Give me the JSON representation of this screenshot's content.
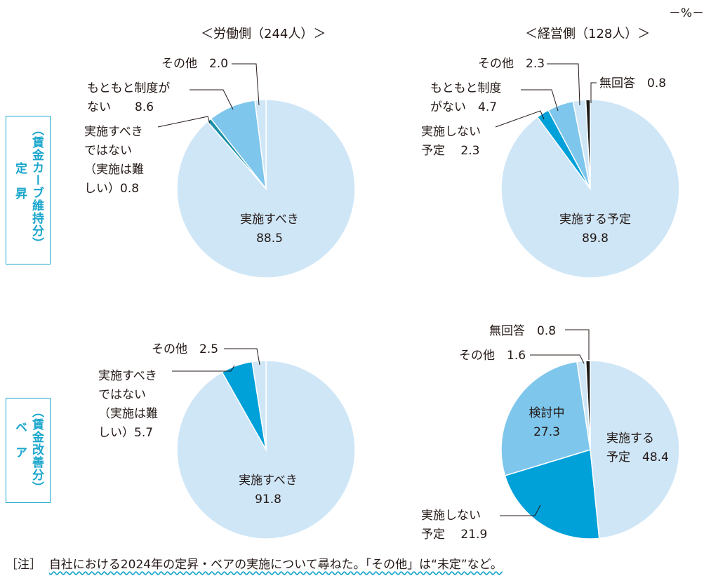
{
  "unit": "－%－",
  "columns": [
    "＜労働側（244人）＞",
    "＜経営側（128人）＞"
  ],
  "rows": [
    {
      "title": "定　昇",
      "sub": "（賃金カーブ維持分）"
    },
    {
      "title": "ベ　ア",
      "sub": "（賃金改善分）"
    }
  ],
  "note": {
    "prefix": "［注］",
    "text": "自社における2024年の定昇・ベアの実施について尋ねた。「その他」は“未定”など。"
  },
  "colors": {
    "light": "#cfe6f7",
    "mid": "#7ec6ec",
    "blue": "#00a0d9",
    "teal": "#1b8ea6",
    "black": "#1a1a1a",
    "accent": "#1aa6cc"
  },
  "chart_data": [
    {
      "type": "pie",
      "title": "定昇・労働側",
      "slices": [
        {
          "label": [
            "実施すべき"
          ],
          "value": 88.5,
          "color": "light"
        },
        {
          "label": [
            "実施すべき",
            "ではない",
            "（実施は難",
            "しい）0.8"
          ],
          "value": 0.8,
          "color": "teal"
        },
        {
          "label": [
            "もともと制度が",
            "ない　　8.6"
          ],
          "value": 8.6,
          "color": "mid"
        },
        {
          "label": [
            "その他　2.0"
          ],
          "value": 2.0,
          "color": "light"
        }
      ]
    },
    {
      "type": "pie",
      "title": "定昇・経営側",
      "slices": [
        {
          "label": [
            "実施する予定"
          ],
          "value": 89.8,
          "color": "light"
        },
        {
          "label": [
            "実施しない",
            "予定　  2.3"
          ],
          "value": 2.3,
          "color": "blue"
        },
        {
          "label": [
            "もともと制度",
            "がない　4.7"
          ],
          "value": 4.7,
          "color": "mid"
        },
        {
          "label": [
            "その他　2.3"
          ],
          "value": 2.3,
          "color": "light"
        },
        {
          "label": [
            "無回答　0.8"
          ],
          "value": 0.8,
          "color": "black"
        }
      ]
    },
    {
      "type": "pie",
      "title": "ベア・労働側",
      "slices": [
        {
          "label": [
            "実施すべき"
          ],
          "value": 91.8,
          "color": "light"
        },
        {
          "label": [
            "実施すべき",
            "ではない",
            "（実施は難",
            "しい）5.7"
          ],
          "value": 5.7,
          "color": "blue"
        },
        {
          "label": [
            "その他　2.5"
          ],
          "value": 2.5,
          "color": "light"
        }
      ]
    },
    {
      "type": "pie",
      "title": "ベア・経営側",
      "slices": [
        {
          "label": [
            "実施する",
            "予定　48.4"
          ],
          "value": 48.4,
          "color": "light"
        },
        {
          "label": [
            "実施しない",
            "予定　  21.9"
          ],
          "value": 21.9,
          "color": "blue"
        },
        {
          "label": [
            "検討中"
          ],
          "value": 27.3,
          "color": "mid"
        },
        {
          "label": [
            "その他　1.6"
          ],
          "value": 1.6,
          "color": "light"
        },
        {
          "label": [
            "無回答　0.8"
          ],
          "value": 0.8,
          "color": "black"
        }
      ]
    }
  ]
}
